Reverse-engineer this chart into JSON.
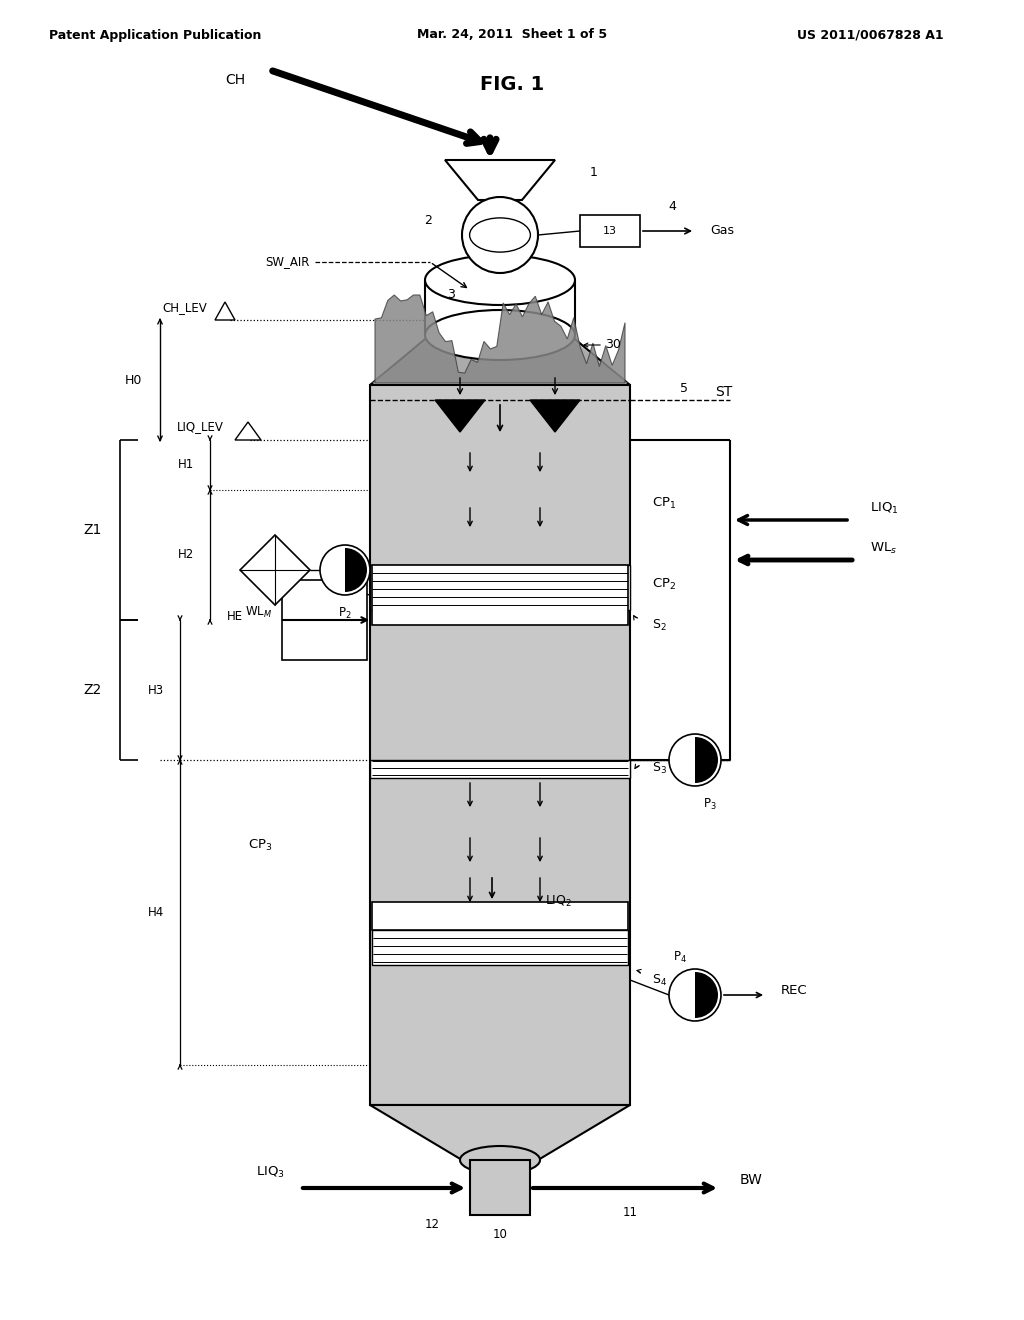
{
  "title": "FIG. 1",
  "header_left": "Patent Application Publication",
  "header_center": "Mar. 24, 2011  Sheet 1 of 5",
  "header_right": "US 2011/0067828 A1",
  "bg_color": "#ffffff",
  "vessel_fill": "#c8c8c8",
  "screen_fill": "#e8e8e8",
  "chip_fill": "#a0a0a0"
}
